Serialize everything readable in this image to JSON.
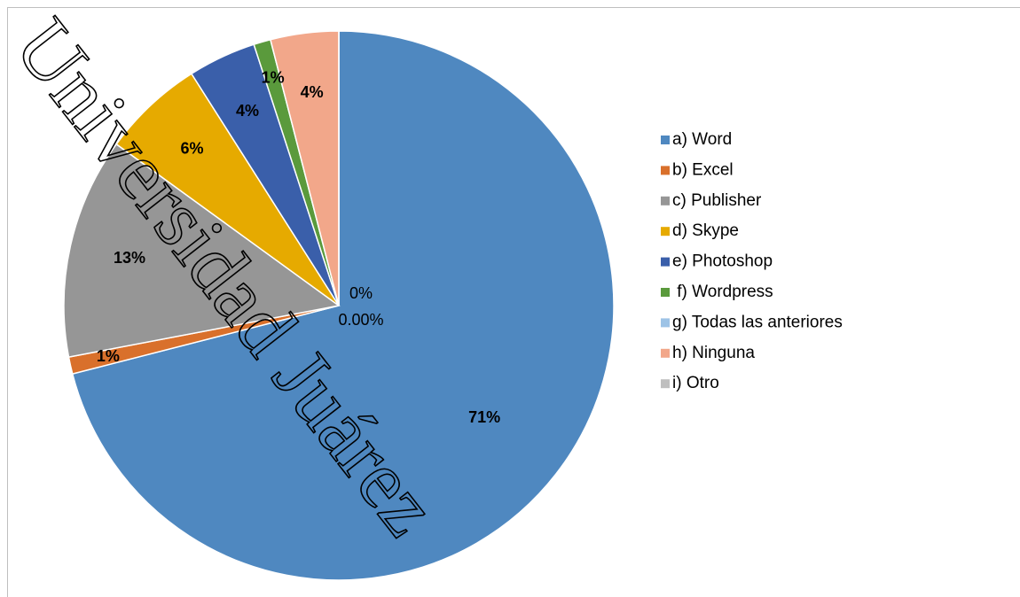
{
  "chart_data": {
    "type": "pie",
    "categories": [
      "a) Word",
      "b) Excel",
      "c) Publisher",
      "d) Skype",
      "e) Photoshop",
      " f) Wordpress",
      "g) Todas las anteriores",
      "h) Ninguna",
      "i) Otro"
    ],
    "values": [
      71,
      1,
      13,
      6,
      4,
      1,
      0,
      4,
      0
    ],
    "value_labels": [
      "71%",
      "1%",
      "13%",
      "6%",
      "4%",
      "1%",
      "0%",
      "4%",
      "0.00%"
    ],
    "colors": [
      "#4f88c0",
      "#d9702b",
      "#969696",
      "#e6aa00",
      "#3a5faa",
      "#5a9a3c",
      "#9dc3e6",
      "#f2a78a",
      "#bfbfbf"
    ],
    "legend": "right",
    "watermark": "Universidad Juárez"
  }
}
